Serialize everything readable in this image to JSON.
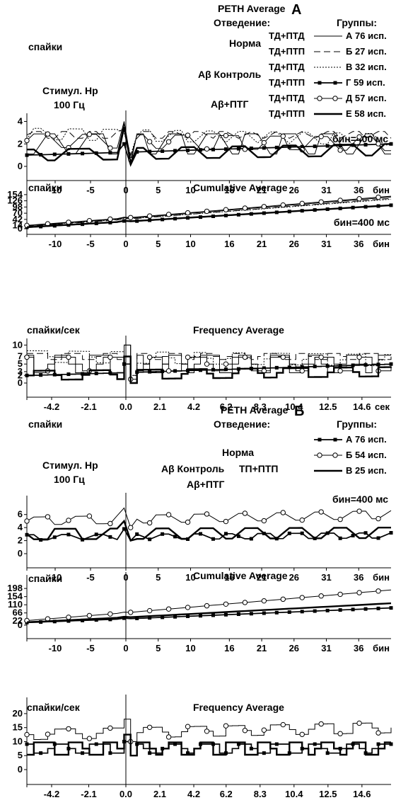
{
  "figure": {
    "section_a": {
      "title": "PETH Average",
      "letter": "А",
      "lead_label": "Отведение:",
      "groups_label": "Группы:",
      "stim_line1": "Стимул. Нр",
      "stim_line2": "100 Гц",
      "bin_note": "бин=400 мс",
      "cond_labels": [
        "Норма",
        "Aβ Контроль",
        "Aβ+ПТГ"
      ],
      "lead_rows": [
        "ТД+ПТД",
        "ТД+ПТП",
        "ТД+ПТД",
        "ТД+ПТП",
        "ТД+ПТД",
        "ТД+ПТП"
      ],
      "legend": [
        {
          "label": "А 76 исп.",
          "style": "thin"
        },
        {
          "label": "Б 27 исп.",
          "style": "dashed"
        },
        {
          "label": "В 32 исп.",
          "style": "dotted"
        },
        {
          "label": "Г 59 исп.",
          "style": "square"
        },
        {
          "label": "Д 57 исп.",
          "style": "circle"
        },
        {
          "label": "Е 58 исп.",
          "style": "thick"
        }
      ]
    },
    "section_b": {
      "title": "PETH Average",
      "letter": "Б",
      "lead_label": "Отведение:",
      "groups_label": "Группы:",
      "stim_line1": "Стимул. Нр",
      "stim_line2": "100 Гц",
      "bin_note": "бин=400 мс",
      "cond_labels": [
        "Норма",
        "Aβ Контроль",
        "Aβ+ПТГ"
      ],
      "lead_mid": "ТП+ПТП",
      "legend": [
        {
          "label": "А 76 исп.",
          "style": "square"
        },
        {
          "label": "Б 54 исп.",
          "style": "circle"
        },
        {
          "label": "В 25 исп.",
          "style": "thick"
        }
      ]
    }
  },
  "chart_data": [
    {
      "id": "a-peth",
      "type": "line",
      "title": "",
      "ylabel": "спайки",
      "xlabel": "бин",
      "xlim": [
        -14,
        41
      ],
      "ylim": [
        0,
        4.6
      ],
      "yticks": [
        0,
        2,
        4
      ],
      "xticks": [
        -10,
        -5,
        0,
        5,
        10,
        16,
        21,
        26,
        31,
        36
      ],
      "xtick_labels": [
        "-10",
        "-5",
        "0",
        "5",
        "10",
        "16",
        "21",
        "26",
        "31",
        "36"
      ],
      "x_unit": "бин",
      "bin_note": "",
      "step": false,
      "series": [
        {
          "style": "thin",
          "y0": 2.0,
          "y_end": 2.0,
          "amp": 0.9,
          "period": 6,
          "peak": 3.8,
          "dip": 0.2
        },
        {
          "style": "dashed",
          "y0": 2.8,
          "y_end": 2.8,
          "amp": 0.3,
          "period": 4,
          "peak": 3.3,
          "dip": 1.0
        },
        {
          "style": "dotted",
          "y0": 2.9,
          "y_end": 2.4,
          "amp": 0.5,
          "period": 5,
          "peak": 3.0,
          "dip": 1.0
        },
        {
          "style": "square",
          "y0": 1.0,
          "y_end": 2.0,
          "amp": 0.0,
          "period": 1,
          "peak": 2.0,
          "dip": 0.1
        },
        {
          "style": "circle",
          "y0": 2.3,
          "y_end": 2.0,
          "amp": 0.6,
          "period": 7,
          "peak": 4.0,
          "dip": 0.6
        },
        {
          "style": "thick",
          "y0": 1.0,
          "y_end": 1.5,
          "amp": 0.5,
          "period": 8,
          "peak": 3.5,
          "dip": 0.3
        }
      ]
    },
    {
      "id": "a-cum",
      "type": "line",
      "title": "Cumulative Average",
      "ylabel": "спайки",
      "xlabel": "бин",
      "xlim": [
        -14,
        41
      ],
      "ylim": [
        0,
        160
      ],
      "yticks": [
        0,
        14,
        42,
        70,
        98,
        126,
        154
      ],
      "xticks": [
        -10,
        -5,
        0,
        5,
        10,
        16,
        21,
        26,
        31,
        36
      ],
      "xtick_labels": [
        "-10",
        "-5",
        "0",
        "5",
        "10",
        "16",
        "21",
        "26",
        "31",
        "36"
      ],
      "x_unit": "бин",
      "bin_note": "бин=400 мс",
      "step": false,
      "series": [
        {
          "style": "thin",
          "y0": 13,
          "y_end": 143
        },
        {
          "style": "dashed",
          "y0": 10,
          "y_end": 137
        },
        {
          "style": "dotted",
          "y0": 13,
          "y_end": 133
        },
        {
          "style": "square",
          "y0": 6,
          "y_end": 106
        },
        {
          "style": "circle",
          "y0": 15,
          "y_end": 147
        },
        {
          "style": "thick",
          "y0": 7,
          "y_end": 106
        }
      ]
    },
    {
      "id": "a-freq",
      "type": "line",
      "title": "Frequency Average",
      "ylabel": "спайки/сек",
      "xlabel": "сек",
      "xlim": [
        -5.6,
        16.4
      ],
      "ylim": [
        0,
        11
      ],
      "yticks": [
        0,
        2,
        3,
        5,
        7,
        10
      ],
      "xticks": [
        -4.2,
        -2.1,
        0.0,
        2.1,
        4.2,
        6.2,
        8.3,
        10.4,
        12.5,
        14.6
      ],
      "xtick_labels": [
        "-4.2",
        "-2.1",
        "0.0",
        "2.1",
        "4.2",
        "6.2",
        "8.3",
        "10.4",
        "12.5",
        "14.6"
      ],
      "x_unit": "сек",
      "bin_note": "",
      "step": true,
      "series": [
        {
          "style": "thin",
          "y0": 5,
          "y_end": 5,
          "amp": 2.3,
          "period": 2.2,
          "peak": 10,
          "dip": 0
        },
        {
          "style": "dashed",
          "y0": 7,
          "y_end": 7,
          "amp": 0.8,
          "period": 2.0,
          "peak": 7,
          "dip": 2
        },
        {
          "style": "dotted",
          "y0": 7,
          "y_end": 6,
          "amp": 1.5,
          "period": 2.4,
          "peak": 7,
          "dip": 2
        },
        {
          "style": "square",
          "y0": 2,
          "y_end": 5,
          "amp": 0.0,
          "period": 1.0,
          "peak": 5,
          "dip": 0
        },
        {
          "style": "circle",
          "y0": 5,
          "y_end": 5,
          "amp": 1.8,
          "period": 2.6,
          "peak": 10,
          "dip": 1
        },
        {
          "style": "thick",
          "y0": 2,
          "y_end": 3,
          "amp": 1.2,
          "period": 3.0,
          "peak": 7,
          "dip": 0
        }
      ]
    },
    {
      "id": "b-peth",
      "type": "line",
      "title": "",
      "ylabel": "спайки",
      "xlabel": "бин",
      "xlim": [
        -14,
        41
      ],
      "ylim": [
        0,
        7.6
      ],
      "yticks": [
        0,
        2,
        4,
        6
      ],
      "xticks": [
        -10,
        -5,
        0,
        5,
        10,
        16,
        21,
        26,
        31,
        36
      ],
      "xtick_labels": [
        "-10",
        "-5",
        "0",
        "5",
        "10",
        "16",
        "21",
        "26",
        "31",
        "36"
      ],
      "x_unit": "бин",
      "bin_note": "бин=400 мс",
      "step": false,
      "series": [
        {
          "style": "square",
          "y0": 2.5,
          "y_end": 2.8,
          "amp": 0.4,
          "period": 5,
          "peak": 3.8,
          "dip": 2.0
        },
        {
          "style": "circle",
          "y0": 5.0,
          "y_end": 6.0,
          "amp": 0.6,
          "period": 6,
          "peak": 7.0,
          "dip": 4.0
        },
        {
          "style": "thick",
          "y0": 3.0,
          "y_end": 3.2,
          "amp": 0.8,
          "period": 7,
          "peak": 5.0,
          "dip": 2.0
        }
      ]
    },
    {
      "id": "b-cum",
      "type": "line",
      "title": "Cumulative Average",
      "ylabel": "спайки",
      "xlabel": "бин",
      "xlim": [
        -14,
        41
      ],
      "ylim": [
        0,
        210
      ],
      "yticks": [
        0,
        22,
        66,
        110,
        154,
        198
      ],
      "xticks": [
        -10,
        -5,
        0,
        5,
        10,
        16,
        21,
        26,
        31,
        36
      ],
      "xtick_labels": [
        "-10",
        "-5",
        "0",
        "5",
        "10",
        "16",
        "21",
        "26",
        "31",
        "36"
      ],
      "x_unit": "бин",
      "bin_note": "",
      "step": false,
      "series": [
        {
          "style": "square",
          "y0": 14,
          "y_end": 93
        },
        {
          "style": "circle",
          "y0": 25,
          "y_end": 190
        },
        {
          "style": "thick",
          "y0": 16,
          "y_end": 118
        }
      ]
    },
    {
      "id": "b-freq",
      "type": "line",
      "title": "Frequency Average",
      "ylabel": "спайки/сек",
      "xlabel": "",
      "xlim": [
        -5.6,
        16.4
      ],
      "ylim": [
        0,
        22
      ],
      "yticks": [
        0,
        5,
        10,
        15,
        20
      ],
      "xticks": [
        -4.2,
        -2.1,
        0.0,
        2.1,
        4.2,
        6.2,
        8.3,
        10.4,
        12.5,
        14.6
      ],
      "xtick_labels": [
        "-4.2",
        "-2.1",
        "0.0",
        "2.1",
        "4.2",
        "6.2",
        "8.3",
        "10.4",
        "12.5",
        "14.6"
      ],
      "x_unit": "",
      "bin_note": "",
      "step": true,
      "series": [
        {
          "style": "square",
          "y0": 7.5,
          "y_end": 7.5,
          "amp": 1.6,
          "period": 2.2,
          "peak": 10,
          "dip": 5
        },
        {
          "style": "circle",
          "y0": 12.5,
          "y_end": 15,
          "amp": 1.8,
          "period": 2.6,
          "peak": 18,
          "dip": 10
        },
        {
          "style": "thick",
          "y0": 7.5,
          "y_end": 7.5,
          "amp": 2.2,
          "period": 1.9,
          "peak": 12.5,
          "dip": 5
        }
      ]
    }
  ]
}
